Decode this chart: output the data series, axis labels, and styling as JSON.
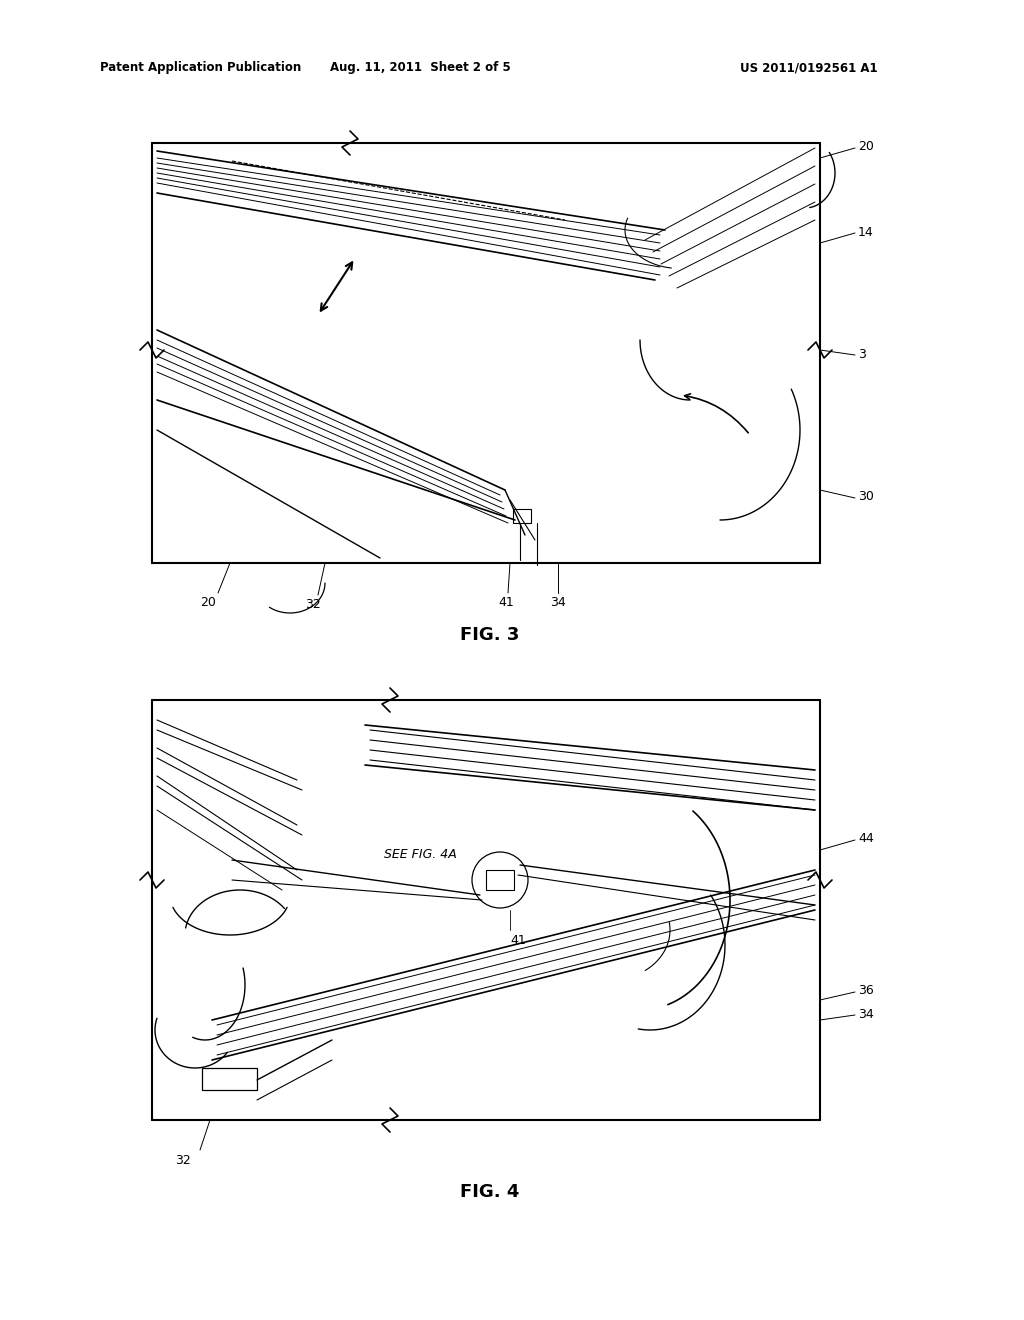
{
  "bg_color": "#ffffff",
  "page_width": 10.24,
  "page_height": 13.2,
  "header_left": "Patent Application Publication",
  "header_mid": "Aug. 11, 2011  Sheet 2 of 5",
  "header_right": "US 2011/0192561 A1",
  "fig3_caption": "FIG. 3",
  "fig4_caption": "FIG. 4",
  "lc": "#000000"
}
